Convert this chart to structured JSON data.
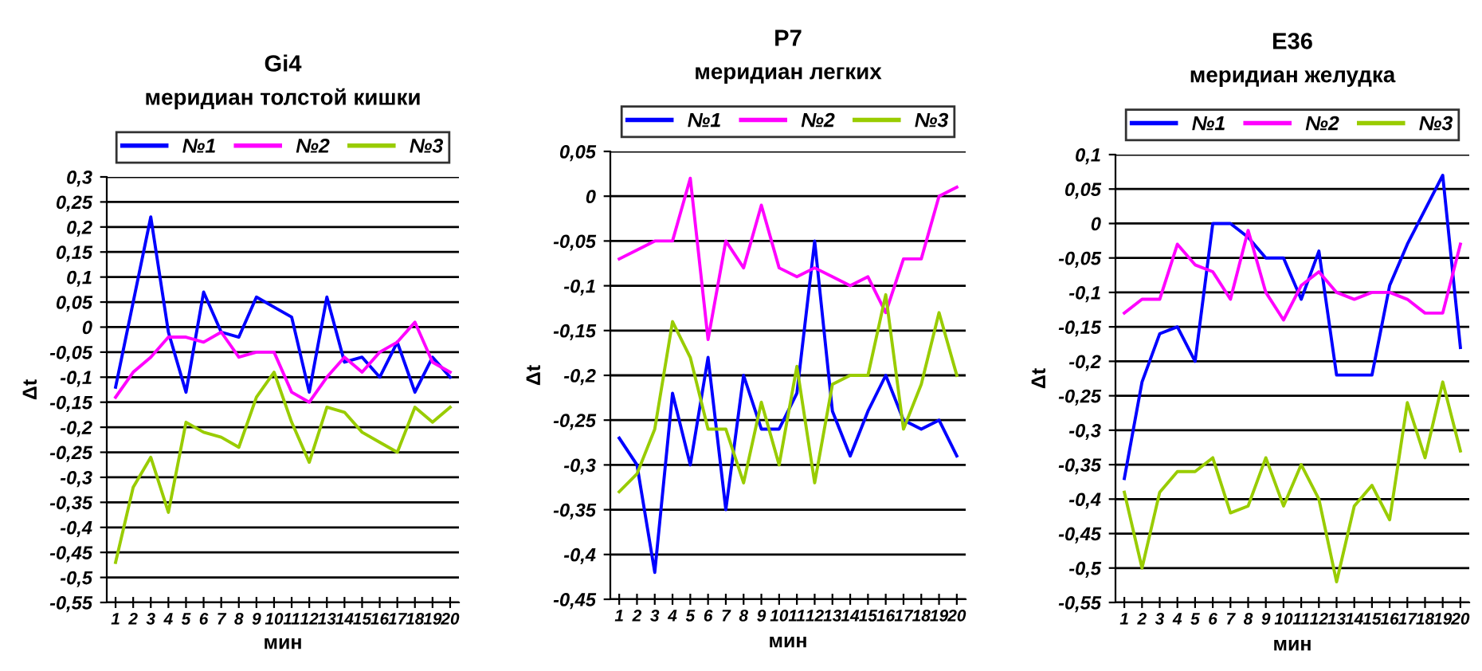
{
  "chart_data": [
    {
      "type": "line",
      "title": "Gi4",
      "subtitle": "меридиан толстой кишки",
      "xlabel": "мин",
      "ylabel": "Δt",
      "categories": [
        "1",
        "2",
        "3",
        "4",
        "5",
        "6",
        "7",
        "8",
        "9",
        "10",
        "11",
        "12",
        "13",
        "14",
        "15",
        "16",
        "17",
        "18",
        "19",
        "20"
      ],
      "ylim": [
        -0.55,
        0.3
      ],
      "yticks": [
        {
          "value": -0.55,
          "label": "-0,55"
        },
        {
          "value": -0.5,
          "label": "-0,5"
        },
        {
          "value": -0.45,
          "label": "-0,45"
        },
        {
          "value": -0.4,
          "label": "-0,4"
        },
        {
          "value": -0.35,
          "label": "-0,35"
        },
        {
          "value": -0.3,
          "label": "-0,3"
        },
        {
          "value": -0.25,
          "label": "-0,25"
        },
        {
          "value": -0.2,
          "label": "-0,2"
        },
        {
          "value": -0.15,
          "label": "-0,15"
        },
        {
          "value": -0.1,
          "label": "-0,1"
        },
        {
          "value": -0.05,
          "label": "-0,05"
        },
        0,
        {
          "value": 0.05,
          "label": "0,05"
        },
        {
          "value": 0.1,
          "label": "0,1"
        },
        {
          "value": 0.15,
          "label": "0,15"
        },
        {
          "value": 0.2,
          "label": "0,2"
        },
        {
          "value": 0.25,
          "label": "0,25"
        },
        {
          "value": 0.3,
          "label": "0,3"
        }
      ],
      "grid": "y",
      "legend": "top",
      "marker": "none",
      "line_style": "solid",
      "series": [
        {
          "name": "№1",
          "color": "#0000ff",
          "values": [
            -0.12,
            0.05,
            0.22,
            -0.01,
            -0.13,
            0.07,
            -0.01,
            -0.02,
            0.06,
            0.04,
            0.02,
            -0.13,
            0.06,
            -0.07,
            -0.06,
            -0.1,
            -0.03,
            -0.13,
            -0.06,
            -0.1
          ]
        },
        {
          "name": "№2",
          "color": "#ff00ff",
          "values": [
            -0.14,
            -0.09,
            -0.06,
            -0.02,
            -0.02,
            -0.03,
            -0.01,
            -0.06,
            -0.05,
            -0.05,
            -0.13,
            -0.15,
            -0.1,
            -0.06,
            -0.09,
            -0.05,
            -0.03,
            0.01,
            -0.07,
            -0.09
          ]
        },
        {
          "name": "№3",
          "color": "#99cc00",
          "values": [
            -0.47,
            -0.32,
            -0.26,
            -0.37,
            -0.19,
            -0.21,
            -0.22,
            -0.24,
            -0.14,
            -0.09,
            -0.19,
            -0.27,
            -0.16,
            -0.17,
            -0.21,
            -0.23,
            -0.25,
            -0.16,
            -0.19,
            -0.16
          ]
        }
      ]
    },
    {
      "type": "line",
      "title": "P7",
      "subtitle": "меридиан легких",
      "xlabel": "мин",
      "ylabel": "Δt",
      "categories": [
        "1",
        "2",
        "3",
        "4",
        "5",
        "6",
        "7",
        "8",
        "9",
        "10",
        "11",
        "12",
        "13",
        "14",
        "15",
        "16",
        "17",
        "18",
        "19",
        "20"
      ],
      "ylim": [
        -0.45,
        0.05
      ],
      "yticks": [
        {
          "value": -0.45,
          "label": "-0,45"
        },
        {
          "value": -0.4,
          "label": "-0,4"
        },
        {
          "value": -0.35,
          "label": "-0,35"
        },
        {
          "value": -0.3,
          "label": "-0,3"
        },
        {
          "value": -0.25,
          "label": "-0,25"
        },
        {
          "value": -0.2,
          "label": "-0,2"
        },
        {
          "value": -0.15,
          "label": "-0,15"
        },
        {
          "value": -0.1,
          "label": "-0,1"
        },
        {
          "value": -0.05,
          "label": "-0,05"
        },
        0,
        {
          "value": 0.05,
          "label": "0,05"
        }
      ],
      "grid": "y",
      "legend": "top",
      "marker": "none",
      "line_style": "solid",
      "series": [
        {
          "name": "№1",
          "color": "#0000ff",
          "values": [
            -0.27,
            -0.3,
            -0.42,
            -0.22,
            -0.3,
            -0.18,
            -0.35,
            -0.2,
            -0.26,
            -0.26,
            -0.22,
            -0.05,
            -0.24,
            -0.29,
            -0.24,
            -0.2,
            -0.25,
            -0.26,
            -0.25,
            -0.29
          ]
        },
        {
          "name": "№2",
          "color": "#ff00ff",
          "values": [
            -0.07,
            -0.06,
            -0.05,
            -0.05,
            0.02,
            -0.16,
            -0.05,
            -0.08,
            -0.01,
            -0.08,
            -0.09,
            -0.08,
            -0.09,
            -0.1,
            -0.09,
            -0.13,
            -0.07,
            -0.07,
            0.0,
            0.01
          ]
        },
        {
          "name": "№3",
          "color": "#99cc00",
          "values": [
            -0.33,
            -0.31,
            -0.26,
            -0.14,
            -0.18,
            -0.26,
            -0.26,
            -0.32,
            -0.23,
            -0.3,
            -0.19,
            -0.32,
            -0.21,
            -0.2,
            -0.2,
            -0.11,
            -0.26,
            -0.21,
            -0.13,
            -0.2
          ]
        }
      ]
    },
    {
      "type": "line",
      "title": "E36",
      "subtitle": "меридиан желудка",
      "xlabel": "мин",
      "ylabel": "Δt",
      "categories": [
        "1",
        "2",
        "3",
        "4",
        "5",
        "6",
        "7",
        "8",
        "9",
        "10",
        "11",
        "12",
        "13",
        "14",
        "15",
        "16",
        "17",
        "18",
        "19",
        "20"
      ],
      "ylim": [
        -0.55,
        0.1
      ],
      "yticks": [
        {
          "value": -0.55,
          "label": "-0,55"
        },
        {
          "value": -0.5,
          "label": "-0,5"
        },
        {
          "value": -0.45,
          "label": "-0,45"
        },
        {
          "value": -0.4,
          "label": "-0,4"
        },
        {
          "value": -0.35,
          "label": "-0,35"
        },
        {
          "value": -0.3,
          "label": "-0,3"
        },
        {
          "value": -0.25,
          "label": "-0,25"
        },
        {
          "value": -0.2,
          "label": "-0,2"
        },
        {
          "value": -0.15,
          "label": "-0,15"
        },
        {
          "value": -0.1,
          "label": "-0,1"
        },
        {
          "value": -0.05,
          "label": "-0,05"
        },
        0,
        {
          "value": 0.05,
          "label": "0,05"
        },
        {
          "value": 0.1,
          "label": "0,1"
        }
      ],
      "grid": "y",
      "legend": "top",
      "marker": "none",
      "line_style": "solid",
      "series": [
        {
          "name": "№1",
          "color": "#0000ff",
          "values": [
            -0.37,
            -0.23,
            -0.16,
            -0.15,
            -0.2,
            0.0,
            0.0,
            -0.02,
            -0.05,
            -0.05,
            -0.11,
            -0.04,
            -0.22,
            -0.22,
            -0.22,
            -0.09,
            -0.03,
            0.02,
            0.07,
            -0.18
          ]
        },
        {
          "name": "№2",
          "color": "#ff00ff",
          "values": [
            -0.13,
            -0.11,
            -0.11,
            -0.03,
            -0.06,
            -0.07,
            -0.11,
            -0.01,
            -0.1,
            -0.14,
            -0.09,
            -0.07,
            -0.1,
            -0.11,
            -0.1,
            -0.1,
            -0.11,
            -0.13,
            -0.13,
            -0.03
          ]
        },
        {
          "name": "№3",
          "color": "#99cc00",
          "values": [
            -0.39,
            -0.5,
            -0.39,
            -0.36,
            -0.36,
            -0.34,
            -0.42,
            -0.41,
            -0.34,
            -0.41,
            -0.35,
            -0.4,
            -0.52,
            -0.41,
            -0.38,
            -0.43,
            -0.26,
            -0.34,
            -0.23,
            -0.33
          ]
        }
      ]
    }
  ]
}
